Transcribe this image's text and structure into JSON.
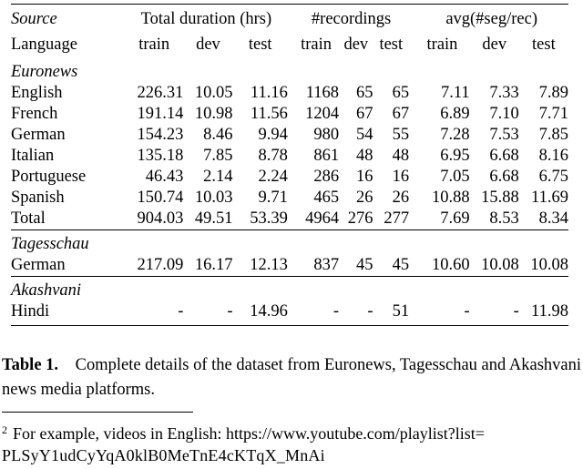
{
  "table": {
    "header": {
      "source_label": "Source",
      "language_label": "Language",
      "groups": [
        "Total duration (hrs)",
        "#recordings",
        "avg(#seg/rec)"
      ],
      "splits": [
        "train",
        "dev",
        "test"
      ]
    },
    "sections": [
      {
        "name": "Euronews",
        "rows": [
          {
            "language": "English",
            "values": [
              "226.31",
              "10.05",
              "11.16",
              "1168",
              "65",
              "65",
              "7.11",
              "7.33",
              "7.89"
            ]
          },
          {
            "language": "French",
            "values": [
              "191.14",
              "10.98",
              "11.56",
              "1204",
              "67",
              "67",
              "6.89",
              "7.10",
              "7.71"
            ]
          },
          {
            "language": "German",
            "values": [
              "154.23",
              "8.46",
              "9.94",
              "980",
              "54",
              "55",
              "7.28",
              "7.53",
              "7.85"
            ]
          },
          {
            "language": "Italian",
            "values": [
              "135.18",
              "7.85",
              "8.78",
              "861",
              "48",
              "48",
              "6.95",
              "6.68",
              "8.16"
            ]
          },
          {
            "language": "Portuguese",
            "values": [
              "46.43",
              "2.14",
              "2.24",
              "286",
              "16",
              "16",
              "7.05",
              "6.68",
              "6.75"
            ]
          },
          {
            "language": "Spanish",
            "values": [
              "150.74",
              "10.03",
              "9.71",
              "465",
              "26",
              "26",
              "10.88",
              "15.88",
              "11.69"
            ]
          },
          {
            "language": "Total",
            "values": [
              "904.03",
              "49.51",
              "53.39",
              "4964",
              "276",
              "277",
              "7.69",
              "8.53",
              "8.34"
            ]
          }
        ]
      },
      {
        "name": "Tagesschau",
        "rows": [
          {
            "language": "German",
            "values": [
              "217.09",
              "16.17",
              "12.13",
              "837",
              "45",
              "45",
              "10.60",
              "10.08",
              "10.08"
            ]
          }
        ]
      },
      {
        "name": "Akashvani",
        "rows": [
          {
            "language": "Hindi",
            "values": [
              "-",
              "-",
              "14.96",
              "-",
              "-",
              "51",
              "-",
              "-",
              "11.98"
            ]
          }
        ]
      }
    ]
  },
  "caption": {
    "label": "Table 1.",
    "text": "Complete details of the dataset from Euronews, Tagesschau and Akashvani news media platforms."
  },
  "footnote": {
    "marker": "2",
    "text": "For example, videos in English: https://www.youtube.com/playlist?list=",
    "text2": "PLSyY1udCyYqA0klB0MeTnE4cKTqX_MnAi"
  }
}
